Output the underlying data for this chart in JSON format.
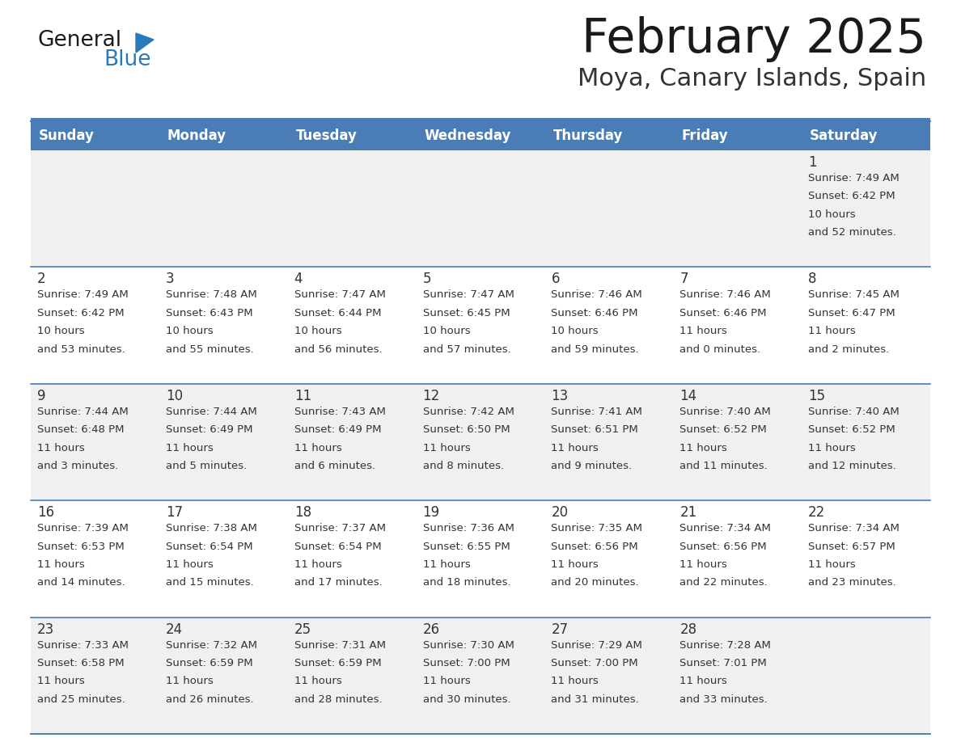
{
  "title": "February 2025",
  "subtitle": "Moya, Canary Islands, Spain",
  "days_of_week": [
    "Sunday",
    "Monday",
    "Tuesday",
    "Wednesday",
    "Thursday",
    "Friday",
    "Saturday"
  ],
  "header_bg": "#4A7DB5",
  "header_text": "#ffffff",
  "row_bg_even": "#f0f0f0",
  "row_bg_odd": "#ffffff",
  "border_color": "#4A7DB5",
  "day_number_color": "#333333",
  "info_text_color": "#333333",
  "title_color": "#1a1a1a",
  "subtitle_color": "#333333",
  "logo_general_color": "#1a1a1a",
  "logo_blue_color": "#2a79b8",
  "separator_color": "#4A7DB5",
  "calendar_data": [
    [
      null,
      null,
      null,
      null,
      null,
      null,
      {
        "day": 1,
        "sunrise": "7:49 AM",
        "sunset": "6:42 PM",
        "daylight": "10 hours\nand 52 minutes."
      }
    ],
    [
      {
        "day": 2,
        "sunrise": "7:49 AM",
        "sunset": "6:42 PM",
        "daylight": "10 hours\nand 53 minutes."
      },
      {
        "day": 3,
        "sunrise": "7:48 AM",
        "sunset": "6:43 PM",
        "daylight": "10 hours\nand 55 minutes."
      },
      {
        "day": 4,
        "sunrise": "7:47 AM",
        "sunset": "6:44 PM",
        "daylight": "10 hours\nand 56 minutes."
      },
      {
        "day": 5,
        "sunrise": "7:47 AM",
        "sunset": "6:45 PM",
        "daylight": "10 hours\nand 57 minutes."
      },
      {
        "day": 6,
        "sunrise": "7:46 AM",
        "sunset": "6:46 PM",
        "daylight": "10 hours\nand 59 minutes."
      },
      {
        "day": 7,
        "sunrise": "7:46 AM",
        "sunset": "6:46 PM",
        "daylight": "11 hours\nand 0 minutes."
      },
      {
        "day": 8,
        "sunrise": "7:45 AM",
        "sunset": "6:47 PM",
        "daylight": "11 hours\nand 2 minutes."
      }
    ],
    [
      {
        "day": 9,
        "sunrise": "7:44 AM",
        "sunset": "6:48 PM",
        "daylight": "11 hours\nand 3 minutes."
      },
      {
        "day": 10,
        "sunrise": "7:44 AM",
        "sunset": "6:49 PM",
        "daylight": "11 hours\nand 5 minutes."
      },
      {
        "day": 11,
        "sunrise": "7:43 AM",
        "sunset": "6:49 PM",
        "daylight": "11 hours\nand 6 minutes."
      },
      {
        "day": 12,
        "sunrise": "7:42 AM",
        "sunset": "6:50 PM",
        "daylight": "11 hours\nand 8 minutes."
      },
      {
        "day": 13,
        "sunrise": "7:41 AM",
        "sunset": "6:51 PM",
        "daylight": "11 hours\nand 9 minutes."
      },
      {
        "day": 14,
        "sunrise": "7:40 AM",
        "sunset": "6:52 PM",
        "daylight": "11 hours\nand 11 minutes."
      },
      {
        "day": 15,
        "sunrise": "7:40 AM",
        "sunset": "6:52 PM",
        "daylight": "11 hours\nand 12 minutes."
      }
    ],
    [
      {
        "day": 16,
        "sunrise": "7:39 AM",
        "sunset": "6:53 PM",
        "daylight": "11 hours\nand 14 minutes."
      },
      {
        "day": 17,
        "sunrise": "7:38 AM",
        "sunset": "6:54 PM",
        "daylight": "11 hours\nand 15 minutes."
      },
      {
        "day": 18,
        "sunrise": "7:37 AM",
        "sunset": "6:54 PM",
        "daylight": "11 hours\nand 17 minutes."
      },
      {
        "day": 19,
        "sunrise": "7:36 AM",
        "sunset": "6:55 PM",
        "daylight": "11 hours\nand 18 minutes."
      },
      {
        "day": 20,
        "sunrise": "7:35 AM",
        "sunset": "6:56 PM",
        "daylight": "11 hours\nand 20 minutes."
      },
      {
        "day": 21,
        "sunrise": "7:34 AM",
        "sunset": "6:56 PM",
        "daylight": "11 hours\nand 22 minutes."
      },
      {
        "day": 22,
        "sunrise": "7:34 AM",
        "sunset": "6:57 PM",
        "daylight": "11 hours\nand 23 minutes."
      }
    ],
    [
      {
        "day": 23,
        "sunrise": "7:33 AM",
        "sunset": "6:58 PM",
        "daylight": "11 hours\nand 25 minutes."
      },
      {
        "day": 24,
        "sunrise": "7:32 AM",
        "sunset": "6:59 PM",
        "daylight": "11 hours\nand 26 minutes."
      },
      {
        "day": 25,
        "sunrise": "7:31 AM",
        "sunset": "6:59 PM",
        "daylight": "11 hours\nand 28 minutes."
      },
      {
        "day": 26,
        "sunrise": "7:30 AM",
        "sunset": "7:00 PM",
        "daylight": "11 hours\nand 30 minutes."
      },
      {
        "day": 27,
        "sunrise": "7:29 AM",
        "sunset": "7:00 PM",
        "daylight": "11 hours\nand 31 minutes."
      },
      {
        "day": 28,
        "sunrise": "7:28 AM",
        "sunset": "7:01 PM",
        "daylight": "11 hours\nand 33 minutes."
      },
      null
    ]
  ]
}
